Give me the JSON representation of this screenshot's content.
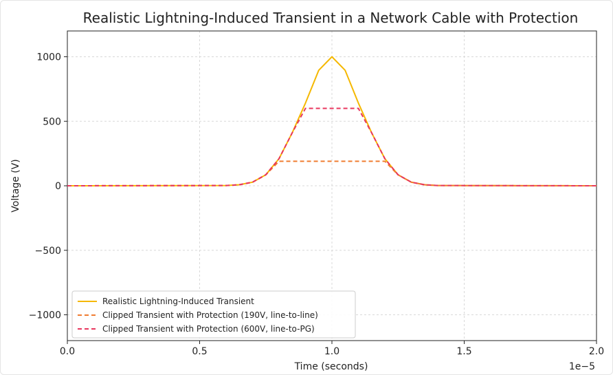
{
  "chart_data": {
    "type": "line",
    "title": "Realistic Lightning-Induced Transient in a Network Cable with Protection",
    "xlabel": "Time (seconds)",
    "ylabel": "Voltage (V)",
    "x_offset_label": "1e−5",
    "xlim": [
      0,
      2.0
    ],
    "ylim": [
      -1200,
      1200
    ],
    "x_ticks": [
      0.0,
      0.5,
      1.0,
      1.5,
      2.0
    ],
    "x_tick_labels": [
      "0.0",
      "0.5",
      "1.0",
      "1.5",
      "2.0"
    ],
    "y_ticks": [
      1000,
      500,
      0,
      -500,
      -1000
    ],
    "y_tick_labels": [
      "1000",
      "500",
      "0",
      "−500",
      "−1000"
    ],
    "grid": true,
    "legend_placement": "lower-left",
    "series": [
      {
        "name": "Realistic Lightning-Induced Transient",
        "color": "#f5b800",
        "style": "solid",
        "x": [
          0.0,
          0.6,
          0.65,
          0.7,
          0.75,
          0.8,
          0.85,
          0.9,
          0.95,
          1.0,
          1.05,
          1.1,
          1.15,
          1.2,
          1.25,
          1.3,
          1.35,
          1.4,
          2.0
        ],
        "y": [
          0,
          2,
          8,
          28,
          85,
          210,
          411,
          641,
          895,
          1000,
          895,
          641,
          411,
          210,
          85,
          28,
          8,
          2,
          0
        ]
      },
      {
        "name": "Clipped Transient with Protection (190V, line-to-line)",
        "color": "#f07c30",
        "style": "dashed",
        "x": [
          0.0,
          0.6,
          0.65,
          0.7,
          0.75,
          0.8,
          0.85,
          0.9,
          0.95,
          1.0,
          1.05,
          1.1,
          1.15,
          1.2,
          1.25,
          1.3,
          1.35,
          1.4,
          2.0
        ],
        "y": [
          0,
          2,
          8,
          28,
          85,
          190,
          190,
          190,
          190,
          190,
          190,
          190,
          190,
          190,
          85,
          28,
          8,
          2,
          0
        ]
      },
      {
        "name": "Clipped Transient with Protection (600V, line-to-PG)",
        "color": "#e8365d",
        "style": "dashed",
        "x": [
          0.0,
          0.6,
          0.65,
          0.7,
          0.75,
          0.8,
          0.85,
          0.9,
          0.95,
          1.0,
          1.05,
          1.1,
          1.15,
          1.2,
          1.25,
          1.3,
          1.35,
          1.4,
          2.0
        ],
        "y": [
          0,
          2,
          8,
          28,
          85,
          210,
          411,
          600,
          600,
          600,
          600,
          600,
          411,
          210,
          85,
          28,
          8,
          2,
          0
        ]
      }
    ]
  }
}
